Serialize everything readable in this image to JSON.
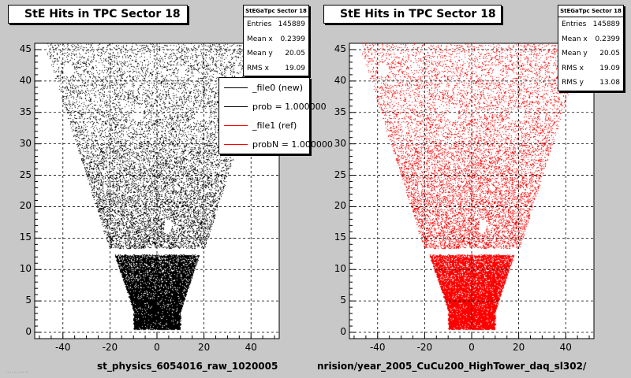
{
  "chart_data": [
    {
      "type": "scatter",
      "title": "StE Hits in TPC Sector 18",
      "xlabel": "",
      "ylabel": "",
      "xlim": [
        -52,
        52
      ],
      "ylim": [
        -1,
        46
      ],
      "xticks": [
        -40,
        -20,
        0,
        20,
        40
      ],
      "yticks": [
        0,
        5,
        10,
        15,
        20,
        25,
        30,
        35,
        40,
        45
      ],
      "grid": true,
      "marker_color": "#000000",
      "stats": {
        "name": "StEGaTpc Sector 18",
        "rows": [
          {
            "label": "Entries",
            "value": "145889"
          },
          {
            "label": "Mean x",
            "value": "0.2399"
          },
          {
            "label": "Mean y",
            "value": "20.05"
          },
          {
            "label": "RMS x",
            "value": "19.09"
          }
        ]
      },
      "legend": {
        "placement": "top-right",
        "entries": [
          {
            "label": "_file0 (new)",
            "color": "#000000"
          },
          {
            "label": "prob = 1.000000",
            "color": "#000000"
          },
          {
            "label": "_file1 (ref)",
            "color": "#ff0000"
          },
          {
            "label": "probN = 1.000000",
            "color": "#ff0000"
          }
        ]
      },
      "footer": "st_physics_6054016_raw_1020005"
    },
    {
      "type": "scatter",
      "title": "StE Hits in TPC Sector 18",
      "xlabel": "",
      "ylabel": "",
      "xlim": [
        -52,
        52
      ],
      "ylim": [
        -1,
        46
      ],
      "xticks": [
        -40,
        -20,
        0,
        20,
        40
      ],
      "yticks": [
        0,
        5,
        10,
        15,
        20,
        25,
        30,
        35,
        40,
        45
      ],
      "grid": true,
      "marker_color": "#ff0000",
      "stats": {
        "name": "StEGaTpc Sector 18",
        "rows": [
          {
            "label": "Entries",
            "value": "145889"
          },
          {
            "label": "Mean x",
            "value": "0.2399"
          },
          {
            "label": "Mean y",
            "value": "20.05"
          },
          {
            "label": "RMS x",
            "value": "19.09"
          },
          {
            "label": "RMS y",
            "value": "13.08"
          }
        ]
      },
      "footer": "nrision/year_2005_CuCu200_HighTower_daq_sl302/"
    }
  ]
}
